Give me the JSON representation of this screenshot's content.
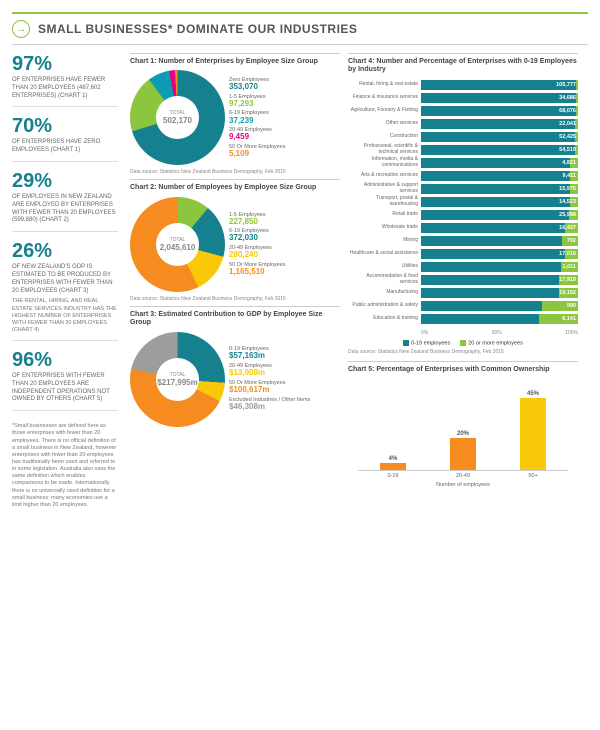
{
  "header": {
    "title": "SMALL BUSINESSES* DOMINATE OUR INDUSTRIES"
  },
  "colors": {
    "teal": "#16818e",
    "orange": "#f68b1f",
    "green": "#8cc63f",
    "yellow": "#f9c909",
    "magenta": "#e6007e",
    "grey": "#9d9d9c",
    "darkteal": "#0d5a64"
  },
  "stats": [
    {
      "pct": "97%",
      "txt": "OF ENTERPRISES HAVE FEWER THAN 20 EMPLOYEES (487,602 ENTERPRISES) (CHART 1)"
    },
    {
      "pct": "70%",
      "txt": "OF ENTERPRISES HAVE ZERO EMPLOYEES (CHART 1)"
    },
    {
      "pct": "29%",
      "txt": "OF EMPLOYEES IN NEW ZEALAND ARE EMPLOYED BY ENTERPRISES WITH FEWER THAN 20 EMPLOYEES (599,880) (CHART 2)"
    },
    {
      "pct": "26%",
      "txt": "OF NEW ZEALAND'S GDP IS ESTIMATED TO BE PRODUCED BY ENTERPRISES WITH FEWER THAN 20 EMPLOYEES (CHART 3)",
      "extra": "THE RENTAL, HIRING, AND REAL ESTATE SERVICES INDUSTRY HAS THE HIGHEST NUMBER OF ENTERPRISES WITH FEWER THAN 20 EMPLOYEES (CHART 4)"
    },
    {
      "pct": "96%",
      "txt": "OF ENTERPRISES WITH FEWER THAN 20 EMPLOYEES ARE INDEPENDENT OPERATIONS NOT OWNED BY OTHERS (CHART 5)"
    }
  ],
  "footnote": "*Small businesses are defined here as those enterprises with fewer than 20 employees. There is no official definition of a small business in New Zealand, however enterprises with fewer than 20 employees has traditionally been used and referred to in some legislation. Australia also uses the same definition which enables comparisons to be made. Internationally there is no universally used definition for a small business: many economies use a limit higher than 20 employees.",
  "chart1": {
    "title": "Chart 1: Number of Enterprises by Employee Size Group",
    "total_lbl": "TOTAL",
    "total": "502,170",
    "items": [
      {
        "name": "Zero Employees",
        "val": "353,070",
        "color": "#16818e",
        "a": 253
      },
      {
        "name": "1-5 Employees",
        "val": "97,293",
        "color": "#8cc63f",
        "a": 70
      },
      {
        "name": "6-19 Employees",
        "val": "37,239",
        "color": "#0d9bb3",
        "a": 27
      },
      {
        "name": "20-49 Employees",
        "val": "9,459",
        "color": "#e6007e",
        "a": 7
      },
      {
        "name": "50 Or More Employees",
        "val": "5,109",
        "color": "#f68b1f",
        "a": 3
      }
    ],
    "src": "Data source: Statistics New Zealand Business Demography, Feb 2015"
  },
  "chart2": {
    "title": "Chart 2: Number of Employees by Employee Size Group",
    "total_lbl": "TOTAL",
    "total": "2,045,610",
    "items": [
      {
        "name": "1-5 Employees",
        "val": "227,850",
        "color": "#8cc63f",
        "a": 40
      },
      {
        "name": "6-19 Employees",
        "val": "372,030",
        "color": "#16818e",
        "a": 65
      },
      {
        "name": "20-49 Employees",
        "val": "280,240",
        "color": "#f9c909",
        "a": 49
      },
      {
        "name": "50 Or More Employees",
        "val": "1,165,510",
        "color": "#f68b1f",
        "a": 206
      }
    ],
    "src": "Data source: Statistics New Zealand Business Demography, Feb 2015"
  },
  "chart3": {
    "title": "Chart 3: Estimated Contribution to GDP by Employee Size Group",
    "total_lbl": "TOTAL",
    "total": "$217,995m",
    "items": [
      {
        "name": "0-19 Employees",
        "val": "$57,163m",
        "color": "#16818e",
        "a": 94
      },
      {
        "name": "20-49 Employees",
        "val": "$13,908m",
        "color": "#f9c909",
        "a": 23
      },
      {
        "name": "50 Or More Employees",
        "val": "$100,617m",
        "color": "#f68b1f",
        "a": 166
      },
      {
        "name": "Excluded Industries / Other Items",
        "val": "$46,308m",
        "color": "#9d9d9c",
        "a": 77
      }
    ]
  },
  "chart4": {
    "title": "Chart 4: Number and Percentage of Enterprises with 0-19 Employees by Industry",
    "rows": [
      {
        "lbl": "Rental, hiring & real estate",
        "val": "105,777",
        "p1": 99,
        "p2": 100
      },
      {
        "lbl": "Finance & insurance services",
        "val": "34,686",
        "p1": 99,
        "p2": 100
      },
      {
        "lbl": "Agriculture, Forestry & Fishing",
        "val": "68,076",
        "p1": 99,
        "p2": 100
      },
      {
        "lbl": "Other services",
        "val": "22,041",
        "p1": 98,
        "p2": 100
      },
      {
        "lbl": "Construction",
        "val": "52,425",
        "p1": 98,
        "p2": 100
      },
      {
        "lbl": "Professional, scientific & technical services",
        "val": "54,519",
        "p1": 98,
        "p2": 100
      },
      {
        "lbl": "Information, media & communications",
        "val": "4,821",
        "p1": 95,
        "p2": 100
      },
      {
        "lbl": "Arts & recreation services",
        "val": "9,411",
        "p1": 95,
        "p2": 100
      },
      {
        "lbl": "Administrative & support services",
        "val": "15,975",
        "p1": 95,
        "p2": 100
      },
      {
        "lbl": "Transport, postal & warehousing",
        "val": "14,523",
        "p1": 95,
        "p2": 100
      },
      {
        "lbl": "Retail trade",
        "val": "25,998",
        "p1": 94,
        "p2": 100
      },
      {
        "lbl": "Wholesale trade",
        "val": "16,437",
        "p1": 92,
        "p2": 100
      },
      {
        "lbl": "Mining",
        "val": "702",
        "p1": 90,
        "p2": 100
      },
      {
        "lbl": "Healthcare & social assistance",
        "val": "17,016",
        "p1": 92,
        "p2": 100
      },
      {
        "lbl": "Utilities",
        "val": "1,011",
        "p1": 89,
        "p2": 100
      },
      {
        "lbl": "Accommodation & food services",
        "val": "17,919",
        "p1": 88,
        "p2": 100
      },
      {
        "lbl": "Manufacturing",
        "val": "19,152",
        "p1": 88,
        "p2": 100
      },
      {
        "lbl": "Public administration & safety",
        "val": "990",
        "p1": 77,
        "p2": 100
      },
      {
        "lbl": "Education & training",
        "val": "6,141",
        "p1": 75,
        "p2": 100
      }
    ],
    "legend": [
      {
        "c": "#16818e",
        "t": "0-19 employees"
      },
      {
        "c": "#8cc63f",
        "t": "20 or more employees"
      }
    ],
    "axis": [
      "0%",
      "50%",
      "100%"
    ],
    "src": "Data source: Statistics New Zealand Business Demography, Feb 2015"
  },
  "chart5": {
    "title": "Chart 5: Percentage of Enterprises with Common Ownership",
    "bars": [
      {
        "lbl": "0-19",
        "val": "4%",
        "h": 8,
        "c": "#f68b1f"
      },
      {
        "lbl": "20-49",
        "val": "20%",
        "h": 40,
        "c": "#f68b1f"
      },
      {
        "lbl": "50+",
        "val": "45%",
        "h": 90,
        "c": "#f9c909"
      }
    ],
    "xtitle": "Number of employees"
  }
}
